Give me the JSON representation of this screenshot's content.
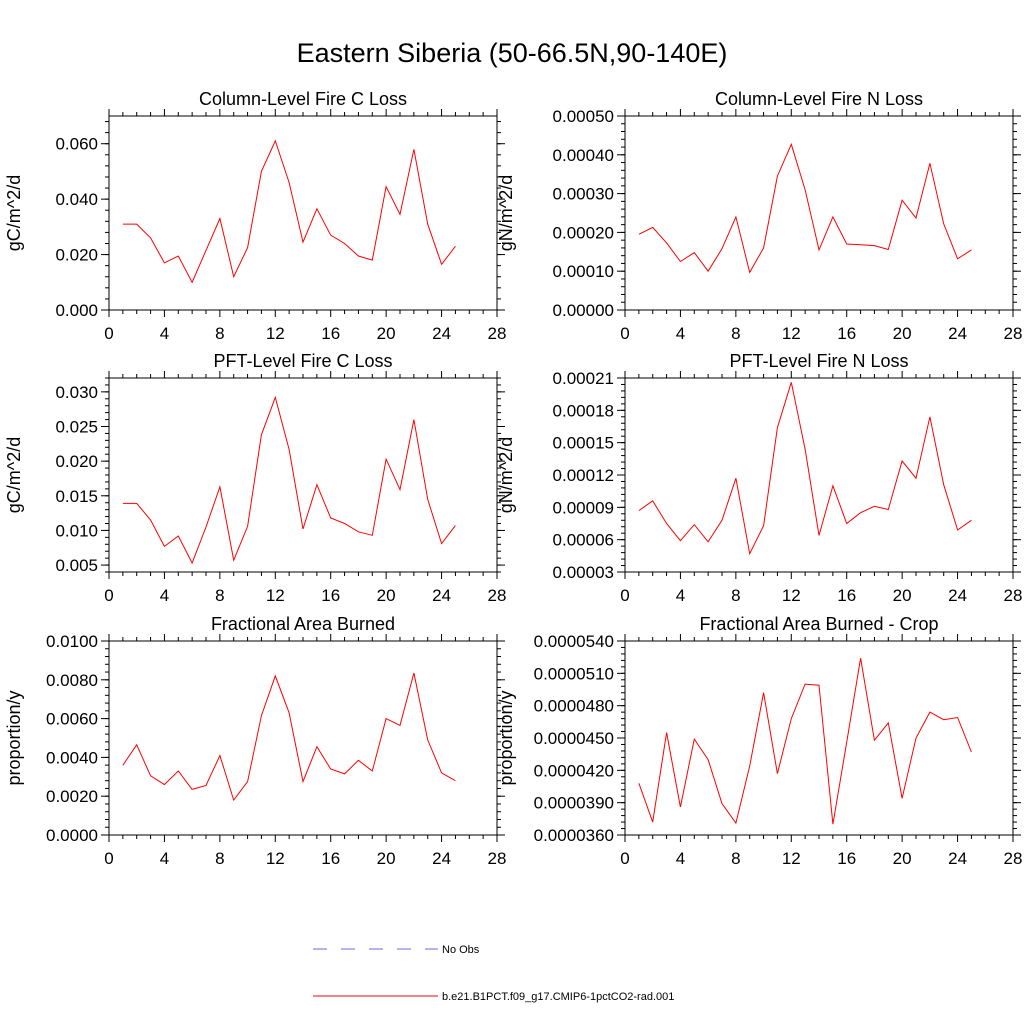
{
  "title": "Eastern Siberia (50-66.5N,90-140E)",
  "colors": {
    "series": "#ff0000",
    "obs": "#6b6bd6",
    "axis": "#000000"
  },
  "legend": {
    "obs_label": "No Obs",
    "model_label": "b.e21.B1PCT.f09_g17.CMIP6-1pctCO2-rad.001"
  },
  "chart_data": [
    {
      "type": "line",
      "title": "Column-Level Fire C Loss",
      "xlabel": "",
      "ylabel": "gC/m^2/d",
      "xlim": [
        0,
        28
      ],
      "xticks": [
        "0",
        "4",
        "8",
        "12",
        "16",
        "20",
        "24",
        "28"
      ],
      "ylim": [
        0,
        0.07
      ],
      "yticks": [
        0,
        0.02,
        0.04,
        0.06
      ],
      "ytick_labels": [
        "0.000",
        "0.020",
        "0.040",
        "0.060"
      ],
      "x": [
        1,
        2,
        3,
        4,
        5,
        6,
        7,
        8,
        9,
        10,
        11,
        12,
        13,
        14,
        15,
        16,
        17,
        18,
        19,
        20,
        21,
        22,
        23,
        24,
        25
      ],
      "series": [
        {
          "name": "b.e21.B1PCT.f09_g17.CMIP6-1pctCO2-rad.001",
          "values": [
            0.031,
            0.031,
            0.026,
            0.017,
            0.0195,
            0.01,
            0.0215,
            0.033,
            0.012,
            0.0225,
            0.05,
            0.061,
            0.046,
            0.0245,
            0.0365,
            0.027,
            0.024,
            0.0195,
            0.018,
            0.0445,
            0.0345,
            0.058,
            0.031,
            0.0165,
            0.023
          ]
        }
      ],
      "grid": false
    },
    {
      "type": "line",
      "title": "Column-Level Fire N Loss",
      "xlabel": "",
      "ylabel": "gN/m^2/d",
      "xlim": [
        0,
        28
      ],
      "xticks": [
        "0",
        "4",
        "8",
        "12",
        "16",
        "20",
        "24",
        "28"
      ],
      "ylim": [
        0,
        0.0005
      ],
      "yticks": [
        0,
        0.0001,
        0.0002,
        0.0003,
        0.0004,
        0.0005
      ],
      "ytick_labels": [
        "0.00000",
        "0.00010",
        "0.00020",
        "0.00030",
        "0.00040",
        "0.00050"
      ],
      "x": [
        1,
        2,
        3,
        4,
        5,
        6,
        7,
        8,
        9,
        10,
        11,
        12,
        13,
        14,
        15,
        16,
        17,
        18,
        19,
        20,
        21,
        22,
        23,
        24,
        25
      ],
      "series": [
        {
          "name": "b.e21.B1PCT.f09_g17.CMIP6-1pctCO2-rad.001",
          "values": [
            0.000195,
            0.000213,
            0.000173,
            0.000125,
            0.000148,
            0.0001,
            0.000158,
            0.00024,
            9.7e-05,
            0.00016,
            0.000345,
            0.000427,
            0.00031,
            0.000155,
            0.00024,
            0.00017,
            0.000168,
            0.000166,
            0.000156,
            0.000283,
            0.000237,
            0.000378,
            0.000222,
            0.000132,
            0.000155
          ]
        }
      ],
      "grid": false
    },
    {
      "type": "line",
      "title": "PFT-Level Fire C Loss",
      "xlabel": "",
      "ylabel": "gC/m^2/d",
      "xlim": [
        0,
        28
      ],
      "xticks": [
        "0",
        "4",
        "8",
        "12",
        "16",
        "20",
        "24",
        "28"
      ],
      "ylim": [
        0.004,
        0.032
      ],
      "yticks": [
        0.005,
        0.01,
        0.015,
        0.02,
        0.025,
        0.03
      ],
      "ytick_labels": [
        "0.005",
        "0.010",
        "0.015",
        "0.020",
        "0.025",
        "0.030"
      ],
      "x": [
        1,
        2,
        3,
        4,
        5,
        6,
        7,
        8,
        9,
        10,
        11,
        12,
        13,
        14,
        15,
        16,
        17,
        18,
        19,
        20,
        21,
        22,
        23,
        24,
        25
      ],
      "series": [
        {
          "name": "b.e21.B1PCT.f09_g17.CMIP6-1pctCO2-rad.001",
          "values": [
            0.0139,
            0.0139,
            0.0115,
            0.0077,
            0.0092,
            0.0053,
            0.0105,
            0.0163,
            0.0057,
            0.0106,
            0.0238,
            0.0292,
            0.0217,
            0.0102,
            0.0166,
            0.0118,
            0.011,
            0.0098,
            0.0093,
            0.0203,
            0.0159,
            0.026,
            0.0145,
            0.0081,
            0.0107
          ]
        }
      ],
      "grid": false
    },
    {
      "type": "line",
      "title": "PFT-Level Fire N Loss",
      "xlabel": "",
      "ylabel": "gN/m^2/d",
      "xlim": [
        0,
        28
      ],
      "xticks": [
        "0",
        "4",
        "8",
        "12",
        "16",
        "20",
        "24",
        "28"
      ],
      "ylim": [
        3e-05,
        0.00021
      ],
      "yticks": [
        3e-05,
        6e-05,
        9e-05,
        0.00012,
        0.00015,
        0.00018,
        0.00021
      ],
      "ytick_labels": [
        "0.00003",
        "0.00006",
        "0.00009",
        "0.00012",
        "0.00015",
        "0.00018",
        "0.00021"
      ],
      "x": [
        1,
        2,
        3,
        4,
        5,
        6,
        7,
        8,
        9,
        10,
        11,
        12,
        13,
        14,
        15,
        16,
        17,
        18,
        19,
        20,
        21,
        22,
        23,
        24,
        25
      ],
      "series": [
        {
          "name": "b.e21.B1PCT.f09_g17.CMIP6-1pctCO2-rad.001",
          "values": [
            8.7e-05,
            9.6e-05,
            7.5e-05,
            5.9e-05,
            7.4e-05,
            5.8e-05,
            7.8e-05,
            0.000117,
            4.7e-05,
            7.3e-05,
            0.000164,
            0.000206,
            0.000144,
            6.4e-05,
            0.00011,
            7.5e-05,
            8.5e-05,
            9.1e-05,
            8.8e-05,
            0.000133,
            0.000117,
            0.000174,
            0.000111,
            6.9e-05,
            7.8e-05
          ]
        }
      ],
      "grid": false
    },
    {
      "type": "line",
      "title": "Fractional Area Burned",
      "xlabel": "",
      "ylabel": "proportion/y",
      "xlim": [
        0,
        28
      ],
      "xticks": [
        "0",
        "4",
        "8",
        "12",
        "16",
        "20",
        "24",
        "28"
      ],
      "ylim": [
        0,
        0.01
      ],
      "yticks": [
        0,
        0.002,
        0.004,
        0.006,
        0.008,
        0.01
      ],
      "ytick_labels": [
        "0.0000",
        "0.0020",
        "0.0040",
        "0.0060",
        "0.0080",
        "0.0100"
      ],
      "x": [
        1,
        2,
        3,
        4,
        5,
        6,
        7,
        8,
        9,
        10,
        11,
        12,
        13,
        14,
        15,
        16,
        17,
        18,
        19,
        20,
        21,
        22,
        23,
        24,
        25
      ],
      "series": [
        {
          "name": "b.e21.B1PCT.f09_g17.CMIP6-1pctCO2-rad.001",
          "values": [
            0.0036,
            0.00465,
            0.00305,
            0.0026,
            0.0033,
            0.00235,
            0.00255,
            0.0041,
            0.0018,
            0.00275,
            0.00615,
            0.0082,
            0.0063,
            0.00275,
            0.00455,
            0.0034,
            0.00315,
            0.00385,
            0.0033,
            0.006,
            0.00565,
            0.00835,
            0.0049,
            0.0032,
            0.0028
          ]
        }
      ],
      "grid": false
    },
    {
      "type": "line",
      "title": "Fractional Area Burned - Crop",
      "xlabel": "",
      "ylabel": "proportion/y",
      "xlim": [
        0,
        28
      ],
      "xticks": [
        "0",
        "4",
        "8",
        "12",
        "16",
        "20",
        "24",
        "28"
      ],
      "ylim": [
        3.6e-05,
        5.4e-05
      ],
      "yticks": [
        3.6e-05,
        3.9e-05,
        4.2e-05,
        4.5e-05,
        4.8e-05,
        5.1e-05,
        5.4e-05
      ],
      "ytick_labels": [
        "0.0000360",
        "0.0000390",
        "0.0000420",
        "0.0000450",
        "0.0000480",
        "0.0000510",
        "0.0000540"
      ],
      "x": [
        1,
        2,
        3,
        4,
        5,
        6,
        7,
        8,
        9,
        10,
        11,
        12,
        13,
        14,
        15,
        16,
        17,
        18,
        19,
        20,
        21,
        22,
        23,
        24,
        25
      ],
      "series": [
        {
          "name": "b.e21.B1PCT.f09_g17.CMIP6-1pctCO2-rad.001",
          "values": [
            4.08e-05,
            3.72e-05,
            4.55e-05,
            3.86e-05,
            4.49e-05,
            4.3e-05,
            3.89e-05,
            3.71e-05,
            4.24e-05,
            4.92e-05,
            4.17e-05,
            4.68e-05,
            5e-05,
            4.99e-05,
            3.7e-05,
            4.46e-05,
            5.24e-05,
            4.48e-05,
            4.64e-05,
            3.94e-05,
            4.5e-05,
            4.74e-05,
            4.67e-05,
            4.69e-05,
            4.37e-05
          ]
        }
      ],
      "grid": false
    }
  ]
}
